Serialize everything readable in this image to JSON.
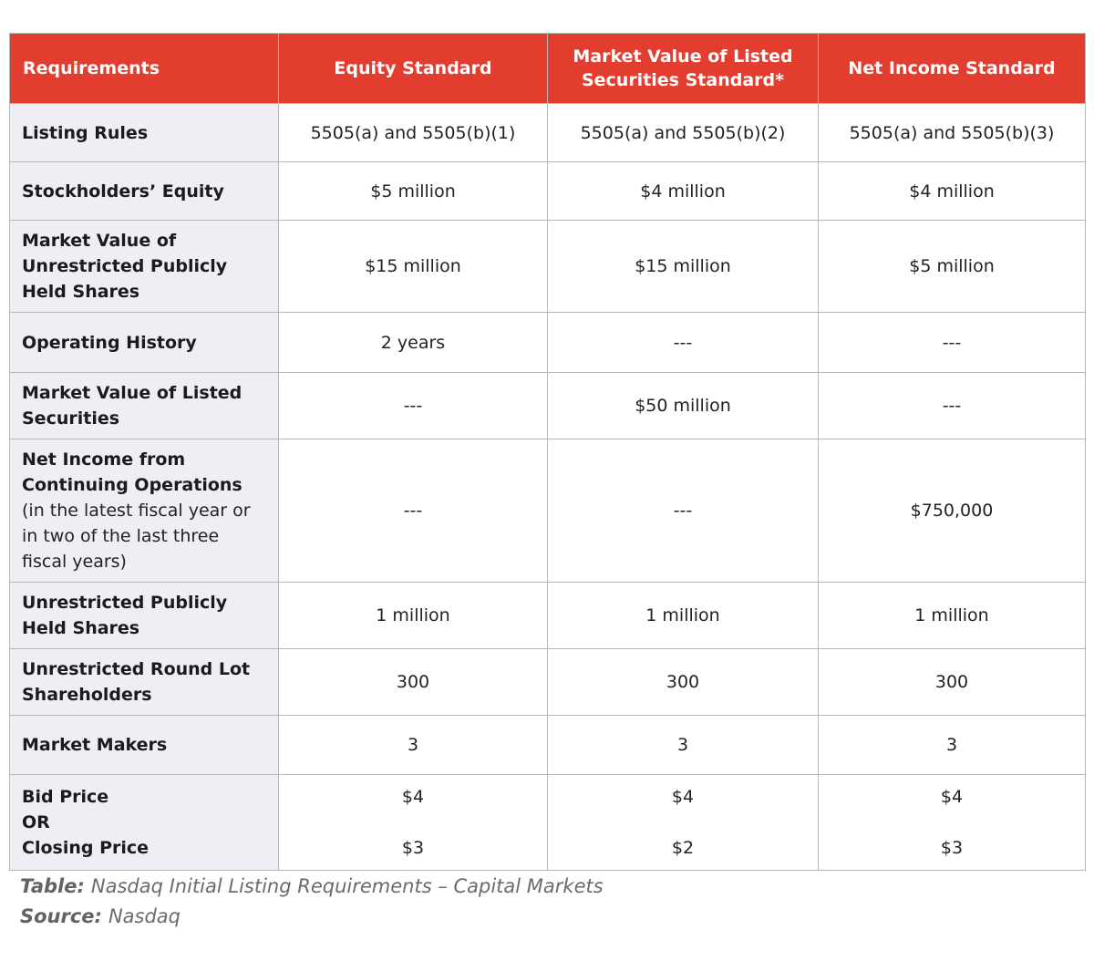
{
  "colors": {
    "header_bg": "#e33d30",
    "header_text": "#ffffff",
    "label_column_bg": "#eeeef4",
    "grid_border": "#b7b7b7",
    "body_text": "#222222",
    "caption_text": "#6b6b6b",
    "page_bg": "#ffffff"
  },
  "chart_data": {
    "type": "table",
    "title": "Nasdaq Initial Listing Requirements – Capital Markets",
    "columns": [
      "Requirements",
      "Equity Standard",
      "Market Value of Listed Securities Standard*",
      "Net Income Standard"
    ],
    "rows": [
      {
        "label": "Listing Rules",
        "values": [
          "5505(a) and 5505(b)(1)",
          "5505(a) and 5505(b)(2)",
          "5505(a) and 5505(b)(3)"
        ]
      },
      {
        "label": "Stockholders’ Equity",
        "values": [
          "$5 million",
          "$4 million",
          "$4 million"
        ]
      },
      {
        "label": "Market Value of Unrestricted Publicly Held Shares",
        "values": [
          "$15 million",
          "$15 million",
          "$5 million"
        ]
      },
      {
        "label": "Operating History",
        "values": [
          "2 years",
          "---",
          "---"
        ]
      },
      {
        "label": "Market Value of Listed Securities",
        "values": [
          "---",
          "$50 million",
          "---"
        ]
      },
      {
        "label": "Net Income from Continuing Operations",
        "sublabel": "(in the latest fiscal year or in two of the last three fiscal years)",
        "values": [
          "---",
          "---",
          "$750,000"
        ]
      },
      {
        "label": "Unrestricted Publicly Held Shares",
        "values": [
          "1 million",
          "1 million",
          "1 million"
        ]
      },
      {
        "label": "Unrestricted Round Lot Shareholders",
        "values": [
          "300",
          "300",
          "300"
        ]
      },
      {
        "label": "Market Makers",
        "values": [
          "3",
          "3",
          "3"
        ]
      },
      {
        "label": [
          "Bid Price",
          "OR",
          "Closing Price"
        ],
        "values": [
          [
            "$4",
            "$3"
          ],
          [
            "$4",
            "$2"
          ],
          [
            "$4",
            "$3"
          ]
        ]
      }
    ],
    "caption": {
      "title_label": "Table:",
      "title_text": "Nasdaq Initial Listing Requirements – Capital Markets",
      "source_label": "Source:",
      "source_text": "Nasdaq"
    }
  }
}
